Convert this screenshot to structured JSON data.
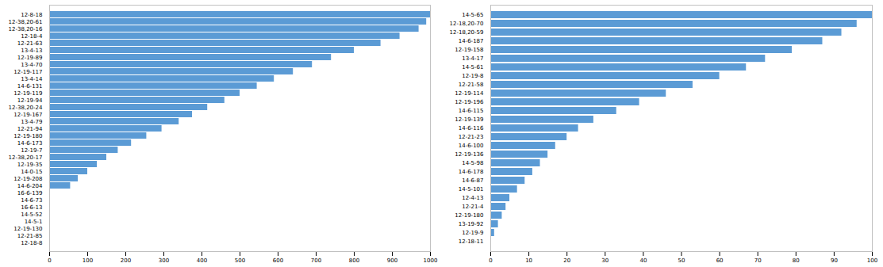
{
  "chart_data": [
    {
      "type": "bar",
      "orientation": "horizontal",
      "categories": [
        "12-8-18",
        "12-38,20-61",
        "12-38,20-16",
        "12-18-4",
        "12-21-63",
        "13-4-13",
        "12-19-89",
        "13-4-70",
        "12-19-117",
        "13-4-14",
        "14-6-131",
        "12-19-119",
        "12-19-94",
        "12-38,20-24",
        "12-19-167",
        "13-4-79",
        "12-21-94",
        "12-19-180",
        "14-6-173",
        "12-19-7",
        "12-38,20-17",
        "12-19-35",
        "14-0-15",
        "12-19-208",
        "14-6-204",
        "16-6-139",
        "14-6-73",
        "16-6-13",
        "14-5-52",
        "14-5-1",
        "12-19-130",
        "12-21-85",
        "12-18-8"
      ],
      "values": [
        1000,
        990,
        970,
        920,
        870,
        800,
        740,
        690,
        640,
        590,
        545,
        500,
        460,
        415,
        375,
        340,
        295,
        255,
        215,
        180,
        150,
        125,
        100,
        75,
        55,
        0,
        0,
        0,
        0,
        0,
        0,
        0,
        0
      ],
      "color": "#5b9bd5",
      "xlim": [
        0,
        1000
      ],
      "xticks": [
        0,
        100,
        200,
        300,
        400,
        500,
        600,
        700,
        800,
        900,
        1000
      ],
      "grid": false
    },
    {
      "type": "bar",
      "orientation": "horizontal",
      "categories": [
        "14-5-65",
        "12-18,20-70",
        "12-18,20-59",
        "14-6-187",
        "12-19-158",
        "13-4-17",
        "14-5-61",
        "12-19-8",
        "12-21-58",
        "12-19-114",
        "12-19-196",
        "14-6-115",
        "12-19-139",
        "14-6-116",
        "12-21-23",
        "14-6-100",
        "12-19-136",
        "14-5-98",
        "14-6-178",
        "14-6-87",
        "14-5-101",
        "12-4-13",
        "12-21-4",
        "12-19-180",
        "13-19-92",
        "12-19-9",
        "12-18-11"
      ],
      "values": [
        100,
        96,
        92,
        87,
        79,
        72,
        67,
        60,
        53,
        46,
        39,
        33,
        27,
        23,
        20,
        17,
        15,
        13,
        11,
        9,
        7,
        5,
        4,
        3,
        2,
        1,
        0
      ],
      "color": "#5b9bd5",
      "xlim": [
        0,
        100
      ],
      "xticks": [
        0,
        10,
        20,
        30,
        40,
        50,
        60,
        70,
        80,
        90,
        100
      ],
      "grid": false
    }
  ]
}
